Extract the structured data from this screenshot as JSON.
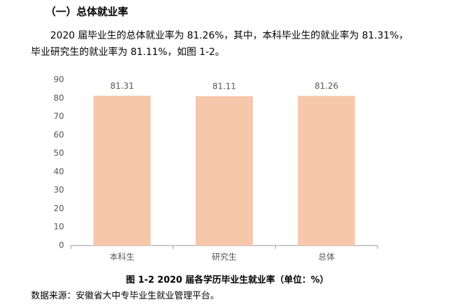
{
  "heading": "（一）总体就业率",
  "paragraph": "2020 届毕业生的总体就业率为 81.26%，其中，本科毕业生的就业率为 81.31%，毕业研究生的就业率为 81.11%，如图 1-2。",
  "chart_data": {
    "type": "bar",
    "title": "图 1-2   2020 届各学历毕业生就业率（单位：%）",
    "categories": [
      "本科生",
      "研究生",
      "总体"
    ],
    "values": [
      81.31,
      81.11,
      81.26
    ],
    "color": "#f6c7aa",
    "ylim": [
      0,
      90
    ],
    "yticks": [
      0,
      10,
      20,
      30,
      40,
      50,
      60,
      70,
      80,
      90
    ],
    "grid": false
  },
  "source": "数据来源：安徽省大中专毕业生就业管理平台。"
}
